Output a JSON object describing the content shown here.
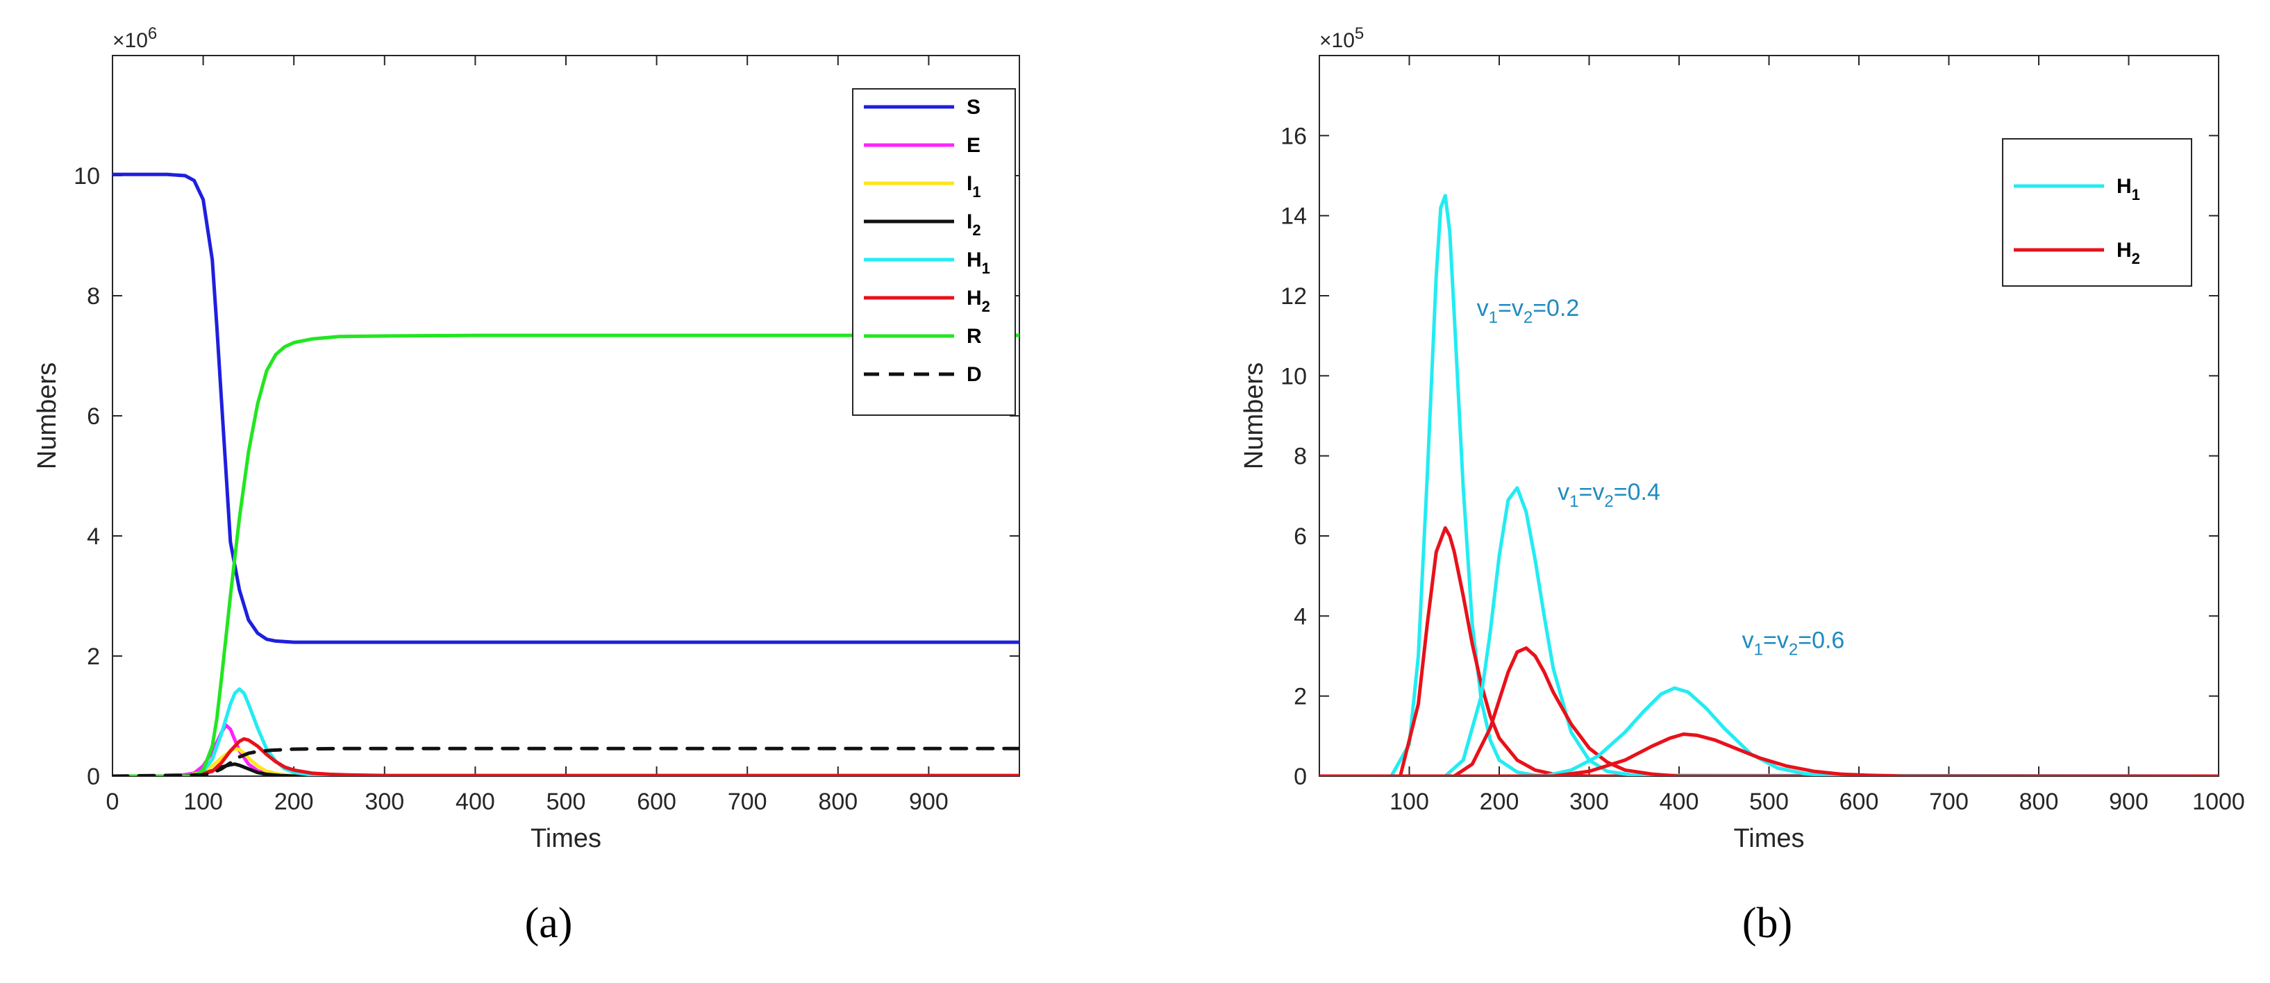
{
  "chart_data": [
    {
      "type": "line",
      "panel_label": "(a)",
      "xlabel": "Times",
      "ylabel": "Numbers",
      "y_multiplier": "×10",
      "y_multiplier_exp": "6",
      "xlim": [
        0,
        1000
      ],
      "ylim": [
        0,
        12
      ],
      "xticks": [
        0,
        100,
        200,
        300,
        400,
        500,
        600,
        700,
        800,
        900
      ],
      "yticks": [
        0,
        2,
        4,
        6,
        8,
        10
      ],
      "legend_position": "top-right",
      "series": [
        {
          "name": "S",
          "base": "S",
          "sub": "",
          "color": "#1f1fde",
          "dash": false,
          "x": [
            0,
            60,
            80,
            90,
            100,
            110,
            115,
            120,
            125,
            130,
            140,
            150,
            160,
            170,
            180,
            190,
            200,
            230,
            260,
            300,
            400,
            600,
            800,
            1000
          ],
          "y": [
            10.02,
            10.02,
            10.0,
            9.92,
            9.6,
            8.6,
            7.5,
            6.3,
            5.1,
            3.9,
            3.1,
            2.6,
            2.38,
            2.28,
            2.25,
            2.24,
            2.23,
            2.23,
            2.23,
            2.23,
            2.23,
            2.23,
            2.23,
            2.23
          ]
        },
        {
          "name": "E",
          "base": "E",
          "sub": "",
          "color": "#ff22ff",
          "dash": false,
          "x": [
            0,
            70,
            90,
            100,
            110,
            120,
            125,
            130,
            135,
            140,
            150,
            160,
            170,
            185,
            200,
            230,
            260,
            1000
          ],
          "y": [
            0,
            0,
            0.05,
            0.17,
            0.4,
            0.72,
            0.85,
            0.78,
            0.6,
            0.42,
            0.2,
            0.09,
            0.04,
            0.01,
            0,
            0,
            0,
            0
          ]
        },
        {
          "name": "I1",
          "base": "I",
          "sub": "1",
          "color": "#ffe61a",
          "dash": false,
          "x": [
            0,
            80,
            100,
            110,
            120,
            130,
            135,
            140,
            145,
            150,
            160,
            170,
            185,
            200,
            230,
            260,
            1000
          ],
          "y": [
            0,
            0,
            0.07,
            0.17,
            0.3,
            0.42,
            0.46,
            0.44,
            0.38,
            0.3,
            0.17,
            0.08,
            0.03,
            0.01,
            0,
            0,
            0
          ]
        },
        {
          "name": "I2",
          "base": "I",
          "sub": "2",
          "color": "#111111",
          "dash": false,
          "x": [
            0,
            80,
            100,
            110,
            120,
            130,
            135,
            140,
            150,
            160,
            170,
            185,
            200,
            230,
            1000
          ],
          "y": [
            0,
            0,
            0.04,
            0.09,
            0.15,
            0.19,
            0.2,
            0.18,
            0.12,
            0.06,
            0.03,
            0.01,
            0,
            0,
            0
          ]
        },
        {
          "name": "H1",
          "base": "H",
          "sub": "1",
          "color": "#22ecf2",
          "dash": false,
          "x": [
            0,
            90,
            100,
            110,
            120,
            130,
            135,
            140,
            145,
            150,
            160,
            170,
            180,
            190,
            200,
            220,
            250,
            280,
            1000
          ],
          "y": [
            0,
            0,
            0.08,
            0.28,
            0.7,
            1.2,
            1.38,
            1.45,
            1.38,
            1.2,
            0.8,
            0.45,
            0.25,
            0.12,
            0.06,
            0.02,
            0.005,
            0,
            0
          ]
        },
        {
          "name": "H2",
          "base": "H",
          "sub": "2",
          "color": "#e8111a",
          "dash": false,
          "x": [
            0,
            90,
            110,
            120,
            130,
            140,
            145,
            150,
            160,
            170,
            180,
            190,
            200,
            220,
            240,
            260,
            300,
            1000
          ],
          "y": [
            0,
            0,
            0.08,
            0.22,
            0.42,
            0.58,
            0.62,
            0.6,
            0.5,
            0.36,
            0.24,
            0.15,
            0.1,
            0.05,
            0.03,
            0.02,
            0.01,
            0.01
          ]
        },
        {
          "name": "R",
          "base": "R",
          "sub": "",
          "color": "#21e621",
          "dash": false,
          "x": [
            0,
            90,
            100,
            110,
            115,
            120,
            125,
            130,
            140,
            150,
            160,
            170,
            180,
            190,
            200,
            220,
            250,
            300,
            400,
            1000
          ],
          "y": [
            0,
            0,
            0.1,
            0.5,
            0.95,
            1.6,
            2.3,
            3.0,
            4.3,
            5.4,
            6.2,
            6.75,
            7.02,
            7.15,
            7.22,
            7.28,
            7.32,
            7.33,
            7.34,
            7.34
          ]
        },
        {
          "name": "D",
          "base": "D",
          "sub": "",
          "color": "#111111",
          "dash": true,
          "x": [
            0,
            100,
            110,
            120,
            130,
            140,
            150,
            160,
            175,
            200,
            250,
            300,
            1000
          ],
          "y": [
            0,
            0.02,
            0.05,
            0.12,
            0.22,
            0.32,
            0.38,
            0.41,
            0.43,
            0.45,
            0.46,
            0.46,
            0.46
          ]
        }
      ]
    },
    {
      "type": "line",
      "panel_label": "(b)",
      "xlabel": "Times",
      "ylabel": "Numbers",
      "y_multiplier": "×10",
      "y_multiplier_exp": "5",
      "xlim": [
        0,
        1000
      ],
      "ylim": [
        0,
        18
      ],
      "xticks": [
        100,
        200,
        300,
        400,
        500,
        600,
        700,
        800,
        900,
        1000
      ],
      "yticks": [
        0,
        2,
        4,
        6,
        8,
        10,
        12,
        14,
        16
      ],
      "legend_position": "top-right",
      "legend": [
        {
          "name": "H1",
          "base": "H",
          "sub": "1",
          "color": "#22ecf2"
        },
        {
          "name": "H2",
          "base": "H",
          "sub": "2",
          "color": "#e8111a"
        }
      ],
      "series": [
        {
          "name": "H1 v1=v2=0.2",
          "color": "#22ecf2",
          "x": [
            0,
            80,
            100,
            110,
            120,
            130,
            135,
            140,
            145,
            150,
            160,
            170,
            180,
            190,
            200,
            220,
            240,
            260,
            1000
          ],
          "y": [
            0,
            0,
            0.8,
            3.0,
            7.5,
            12.5,
            14.2,
            14.5,
            13.6,
            11.5,
            7.2,
            3.8,
            1.9,
            0.9,
            0.4,
            0.1,
            0.02,
            0,
            0
          ]
        },
        {
          "name": "H2 v1=v2=0.2",
          "color": "#e8111a",
          "x": [
            0,
            90,
            110,
            120,
            130,
            140,
            145,
            150,
            160,
            170,
            180,
            190,
            200,
            220,
            240,
            260,
            280,
            300,
            1000
          ],
          "y": [
            0,
            0,
            1.8,
            3.8,
            5.6,
            6.2,
            6.0,
            5.6,
            4.5,
            3.3,
            2.3,
            1.5,
            0.95,
            0.4,
            0.15,
            0.05,
            0.02,
            0,
            0
          ]
        },
        {
          "name": "H1 v1=v2=0.4",
          "color": "#22ecf2",
          "x": [
            0,
            140,
            160,
            180,
            190,
            200,
            210,
            220,
            230,
            240,
            250,
            260,
            280,
            300,
            320,
            350,
            1000
          ],
          "y": [
            0,
            0,
            0.4,
            2.0,
            3.6,
            5.5,
            6.9,
            7.2,
            6.6,
            5.4,
            4.0,
            2.7,
            1.1,
            0.4,
            0.12,
            0.02,
            0
          ]
        },
        {
          "name": "H2 v1=v2=0.4",
          "color": "#e8111a",
          "x": [
            0,
            150,
            170,
            190,
            200,
            210,
            220,
            230,
            240,
            250,
            260,
            280,
            300,
            320,
            340,
            370,
            400,
            1000
          ],
          "y": [
            0,
            0,
            0.3,
            1.2,
            1.9,
            2.6,
            3.1,
            3.2,
            3.0,
            2.6,
            2.1,
            1.3,
            0.7,
            0.35,
            0.15,
            0.05,
            0,
            0
          ]
        },
        {
          "name": "H1 v1=v2=0.6",
          "color": "#22ecf2",
          "x": [
            0,
            250,
            280,
            310,
            340,
            360,
            380,
            395,
            410,
            430,
            450,
            480,
            510,
            540,
            570,
            600,
            1000
          ],
          "y": [
            0,
            0,
            0.15,
            0.5,
            1.1,
            1.6,
            2.05,
            2.2,
            2.1,
            1.7,
            1.2,
            0.55,
            0.2,
            0.06,
            0.01,
            0,
            0
          ]
        },
        {
          "name": "H2 v1=v2=0.6",
          "color": "#e8111a",
          "x": [
            0,
            260,
            300,
            340,
            370,
            390,
            405,
            420,
            440,
            460,
            490,
            520,
            550,
            580,
            610,
            650,
            1000
          ],
          "y": [
            0,
            0,
            0.12,
            0.4,
            0.75,
            0.95,
            1.05,
            1.02,
            0.9,
            0.72,
            0.45,
            0.25,
            0.12,
            0.05,
            0.02,
            0,
            0
          ]
        }
      ],
      "annotations": [
        {
          "base1": "v",
          "sub1": "1",
          "base2": "=v",
          "sub2": "2",
          "rest": "=0.2",
          "x": 175,
          "y": 11.5
        },
        {
          "base1": "v",
          "sub1": "1",
          "base2": "=v",
          "sub2": "2",
          "rest": "=0.4",
          "x": 265,
          "y": 6.9
        },
        {
          "base1": "v",
          "sub1": "1",
          "base2": "=v",
          "sub2": "2",
          "rest": "=0.6",
          "x": 470,
          "y": 3.2
        }
      ]
    }
  ]
}
